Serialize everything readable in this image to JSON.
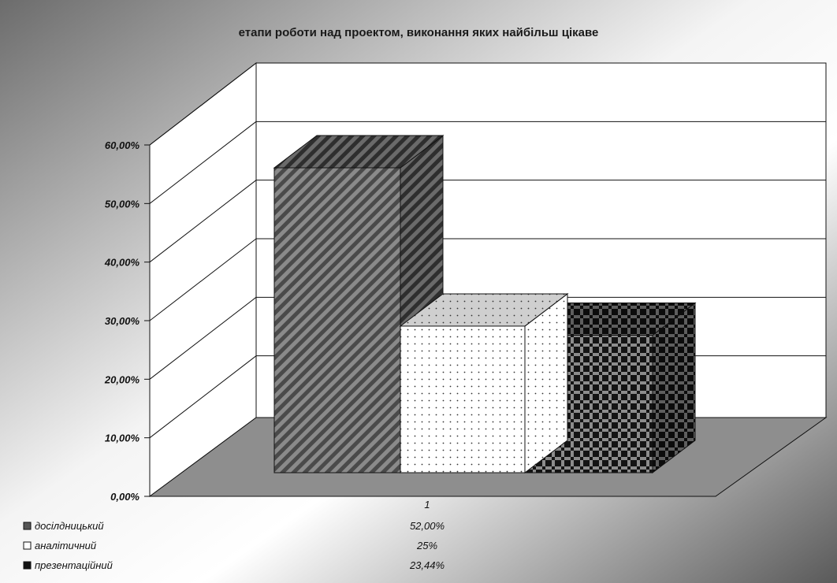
{
  "chart_data": {
    "type": "bar",
    "title": "етапи роботи над проектом, виконання яких найбільш цікаве",
    "categories": [
      "1"
    ],
    "series": [
      {
        "name": "досілдницький",
        "values": [
          52.0
        ],
        "label": "52,00%",
        "pattern": "diagonal-stripes",
        "color": "#555555"
      },
      {
        "name": "аналітичний",
        "values": [
          25.0
        ],
        "label": "25%",
        "pattern": "dots",
        "color": "#ffffff"
      },
      {
        "name": "презентаційний",
        "values": [
          23.44
        ],
        "label": "23,44%",
        "pattern": "checker",
        "color": "#1a1a1a"
      }
    ],
    "ylim": [
      0,
      60
    ],
    "yticks": [
      "0,00%",
      "10,00%",
      "20,00%",
      "30,00%",
      "40,00%",
      "50,00%",
      "60,00%"
    ],
    "xlabel": "",
    "ylabel": "",
    "grid": true,
    "three_d": true,
    "legend": "data-table-bottom-left"
  }
}
